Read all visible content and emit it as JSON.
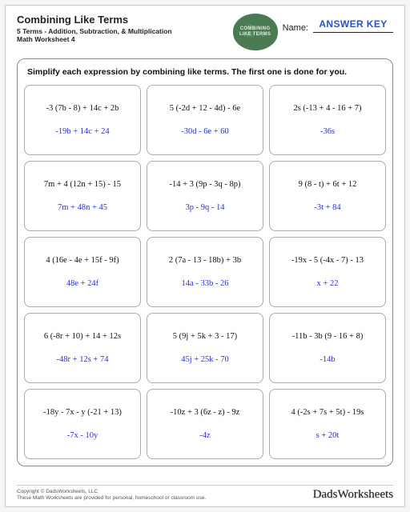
{
  "header": {
    "title": "Combining Like Terms",
    "subtitle": "5 Terms - Addition, Subtraction, & Multiplication",
    "worksheet_num": "Math Worksheet 4",
    "name_label": "Name:",
    "answer_key": "ANSWER KEY",
    "badge": {
      "line1": "COMBINING",
      "line2": "LIKE TERMS",
      "bg": "√2a + (\n√8b + c²"
    }
  },
  "instructions": "Simplify each expression by combining like terms.  The first one is done for you.",
  "problems": [
    {
      "expr": "-3 (7b - 8) + 14c + 2b",
      "ans": "-19b + 14c + 24"
    },
    {
      "expr": "5 (-2d + 12 - 4d) - 6e",
      "ans": "-30d - 6e + 60"
    },
    {
      "expr": "2s (-13 + 4 - 16 + 7)",
      "ans": "-36s"
    },
    {
      "expr": "7m + 4 (12n + 15) - 15",
      "ans": "7m + 48n + 45"
    },
    {
      "expr": "-14 + 3 (9p - 3q - 8p)",
      "ans": "3p - 9q - 14"
    },
    {
      "expr": "9 (8 - t) + 6t + 12",
      "ans": "-3t + 84"
    },
    {
      "expr": "4 (16e - 4e + 15f - 9f)",
      "ans": "48e + 24f"
    },
    {
      "expr": "2 (7a - 13 - 18b) + 3b",
      "ans": "14a - 33b - 26"
    },
    {
      "expr": "-19x - 5 (-4x - 7) - 13",
      "ans": "x + 22"
    },
    {
      "expr": "6 (-8r + 10) + 14 + 12s",
      "ans": "-48r + 12s + 74"
    },
    {
      "expr": "5 (9j + 5k + 3 - 17)",
      "ans": "45j + 25k - 70"
    },
    {
      "expr": "-11b - 3b (9 - 16 + 8)",
      "ans": "-14b"
    },
    {
      "expr": "-18y - 7x - y (-21 + 13)",
      "ans": "-7x - 10y"
    },
    {
      "expr": "-10z + 3 (6z - z) - 9z",
      "ans": "-4z"
    },
    {
      "expr": "4 (-2s + 7s + 5t) - 19s",
      "ans": "s + 20t"
    }
  ],
  "footer": {
    "copyright_line1": "Copyright © DadsWorksheets, LLC",
    "copyright_line2": "These Math Worksheets are provided for personal, homeschool or classroom use.",
    "brand": "DadsWorksheets"
  },
  "colors": {
    "answer_text": "#2a2ed8",
    "header_blue": "#2a4fd0",
    "badge_bg": "#4a7a52",
    "cell_border": "#aaaaaa",
    "frame_border": "#888888"
  }
}
